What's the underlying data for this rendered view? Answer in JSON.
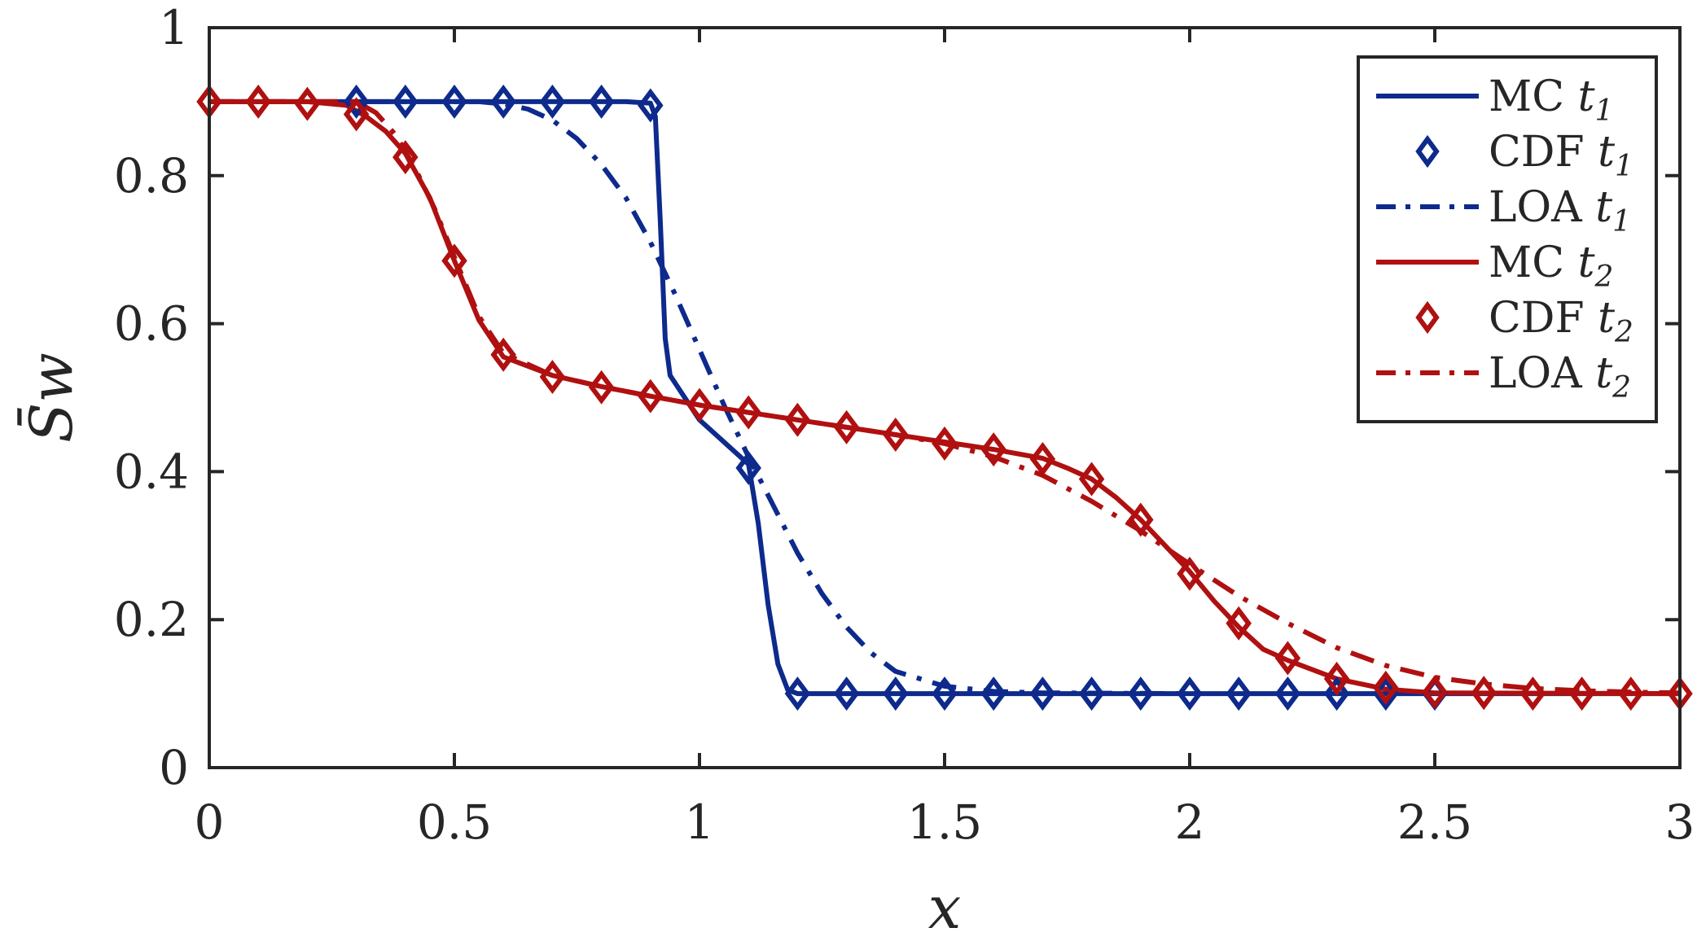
{
  "chart_data": {
    "type": "line",
    "title": "",
    "xlabel": "x",
    "ylabel": "S̄w",
    "xlim": [
      0,
      3
    ],
    "ylim": [
      0,
      1
    ],
    "xticks": [
      0,
      0.5,
      1,
      1.5,
      2,
      2.5,
      3
    ],
    "xtick_labels": [
      "0",
      "0.5",
      "1",
      "1.5",
      "2",
      "2.5",
      "3"
    ],
    "yticks": [
      0,
      0.2,
      0.4,
      0.6,
      0.8,
      1
    ],
    "ytick_labels": [
      "0",
      "0.2",
      "0.4",
      "0.6",
      "0.8",
      "1"
    ],
    "grid": false,
    "legend_position": "top-right",
    "colors": {
      "blue": "#0d2a8c",
      "red": "#b01010",
      "axis": "#262626"
    },
    "series": [
      {
        "name": "MC t1",
        "label_main": "MC",
        "label_var": "t",
        "label_sub": "1",
        "color": "#0d2a8c",
        "style": "solid",
        "marker": "none",
        "x": [
          0,
          0.3,
          0.6,
          0.85,
          0.9,
          0.91,
          0.92,
          0.93,
          0.94,
          0.96,
          1.0,
          1.05,
          1.1,
          1.12,
          1.14,
          1.16,
          1.18,
          1.2,
          1.3,
          2.0,
          3.0
        ],
        "y": [
          0.9,
          0.9,
          0.9,
          0.9,
          0.898,
          0.88,
          0.74,
          0.58,
          0.53,
          0.51,
          0.47,
          0.44,
          0.41,
          0.33,
          0.22,
          0.14,
          0.105,
          0.1,
          0.1,
          0.1,
          0.1
        ]
      },
      {
        "name": "CDF t1",
        "label_main": "CDF",
        "label_var": "t",
        "label_sub": "1",
        "color": "#0d2a8c",
        "style": "none",
        "marker": "diamond",
        "x": [
          0.3,
          0.4,
          0.5,
          0.6,
          0.7,
          0.8,
          0.9,
          1.1,
          1.2,
          1.3,
          1.4,
          1.5,
          1.6,
          1.7,
          1.8,
          1.9,
          2.0,
          2.1,
          2.2,
          2.3,
          2.4,
          2.5
        ],
        "y": [
          0.9,
          0.9,
          0.9,
          0.9,
          0.9,
          0.9,
          0.895,
          0.405,
          0.1,
          0.1,
          0.1,
          0.1,
          0.1,
          0.1,
          0.1,
          0.1,
          0.1,
          0.1,
          0.1,
          0.1,
          0.1,
          0.1
        ]
      },
      {
        "name": "LOA t1",
        "label_main": "LOA",
        "label_var": "t",
        "label_sub": "1",
        "color": "#0d2a8c",
        "style": "dashdot",
        "marker": "none",
        "x": [
          0,
          0.55,
          0.6,
          0.65,
          0.7,
          0.75,
          0.8,
          0.85,
          0.9,
          0.95,
          1.0,
          1.05,
          1.1,
          1.15,
          1.2,
          1.25,
          1.3,
          1.35,
          1.4,
          1.5,
          1.6,
          1.7,
          2.0
        ],
        "y": [
          0.9,
          0.9,
          0.897,
          0.89,
          0.875,
          0.85,
          0.815,
          0.77,
          0.71,
          0.64,
          0.565,
          0.49,
          0.42,
          0.355,
          0.29,
          0.235,
          0.19,
          0.155,
          0.13,
          0.11,
          0.103,
          0.101,
          0.1
        ]
      },
      {
        "name": "MC t2",
        "label_main": "MC",
        "label_var": "t",
        "label_sub": "2",
        "color": "#b01010",
        "style": "solid",
        "marker": "none",
        "x": [
          0,
          0.2,
          0.28,
          0.32,
          0.36,
          0.4,
          0.45,
          0.5,
          0.55,
          0.6,
          0.7,
          0.8,
          0.9,
          1.0,
          1.1,
          1.2,
          1.3,
          1.4,
          1.5,
          1.6,
          1.7,
          1.75,
          1.8,
          1.85,
          1.9,
          1.95,
          2.0,
          2.05,
          2.1,
          2.15,
          2.2,
          2.3,
          2.4,
          2.5,
          3.0
        ],
        "y": [
          0.9,
          0.9,
          0.895,
          0.88,
          0.86,
          0.83,
          0.77,
          0.685,
          0.605,
          0.555,
          0.53,
          0.515,
          0.502,
          0.49,
          0.48,
          0.47,
          0.46,
          0.45,
          0.44,
          0.43,
          0.418,
          0.405,
          0.39,
          0.365,
          0.335,
          0.3,
          0.265,
          0.225,
          0.19,
          0.16,
          0.145,
          0.12,
          0.106,
          0.101,
          0.1
        ]
      },
      {
        "name": "CDF t2",
        "label_main": "CDF",
        "label_var": "t",
        "label_sub": "2",
        "color": "#b01010",
        "style": "none",
        "marker": "diamond",
        "x": [
          0,
          0.1,
          0.2,
          0.3,
          0.4,
          0.5,
          0.6,
          0.7,
          0.8,
          0.9,
          1.0,
          1.1,
          1.2,
          1.3,
          1.4,
          1.5,
          1.6,
          1.7,
          1.8,
          1.9,
          2.0,
          2.1,
          2.2,
          2.3,
          2.4,
          2.5,
          2.6,
          2.7,
          2.8,
          2.9,
          3.0
        ],
        "y": [
          0.9,
          0.9,
          0.897,
          0.883,
          0.825,
          0.685,
          0.558,
          0.528,
          0.514,
          0.502,
          0.49,
          0.48,
          0.47,
          0.46,
          0.45,
          0.438,
          0.43,
          0.417,
          0.39,
          0.335,
          0.262,
          0.195,
          0.148,
          0.12,
          0.108,
          0.102,
          0.101,
          0.1,
          0.1,
          0.1,
          0.1
        ]
      },
      {
        "name": "LOA t2",
        "label_main": "LOA",
        "label_var": "t",
        "label_sub": "2",
        "color": "#b01010",
        "style": "dashdot",
        "marker": "none",
        "x": [
          0,
          0.3,
          0.34,
          0.38,
          0.42,
          0.46,
          0.5,
          0.55,
          0.6,
          0.7,
          0.8,
          0.9,
          1.0,
          1.1,
          1.2,
          1.3,
          1.4,
          1.5,
          1.6,
          1.7,
          1.8,
          1.9,
          2.0,
          2.1,
          2.2,
          2.3,
          2.4,
          2.5,
          2.6,
          2.7,
          2.8,
          2.9,
          3.0
        ],
        "y": [
          0.9,
          0.9,
          0.885,
          0.855,
          0.81,
          0.755,
          0.69,
          0.61,
          0.56,
          0.53,
          0.515,
          0.502,
          0.49,
          0.48,
          0.47,
          0.46,
          0.45,
          0.438,
          0.42,
          0.395,
          0.36,
          0.32,
          0.275,
          0.232,
          0.195,
          0.162,
          0.138,
          0.122,
          0.113,
          0.107,
          0.104,
          0.102,
          0.101
        ]
      }
    ]
  }
}
